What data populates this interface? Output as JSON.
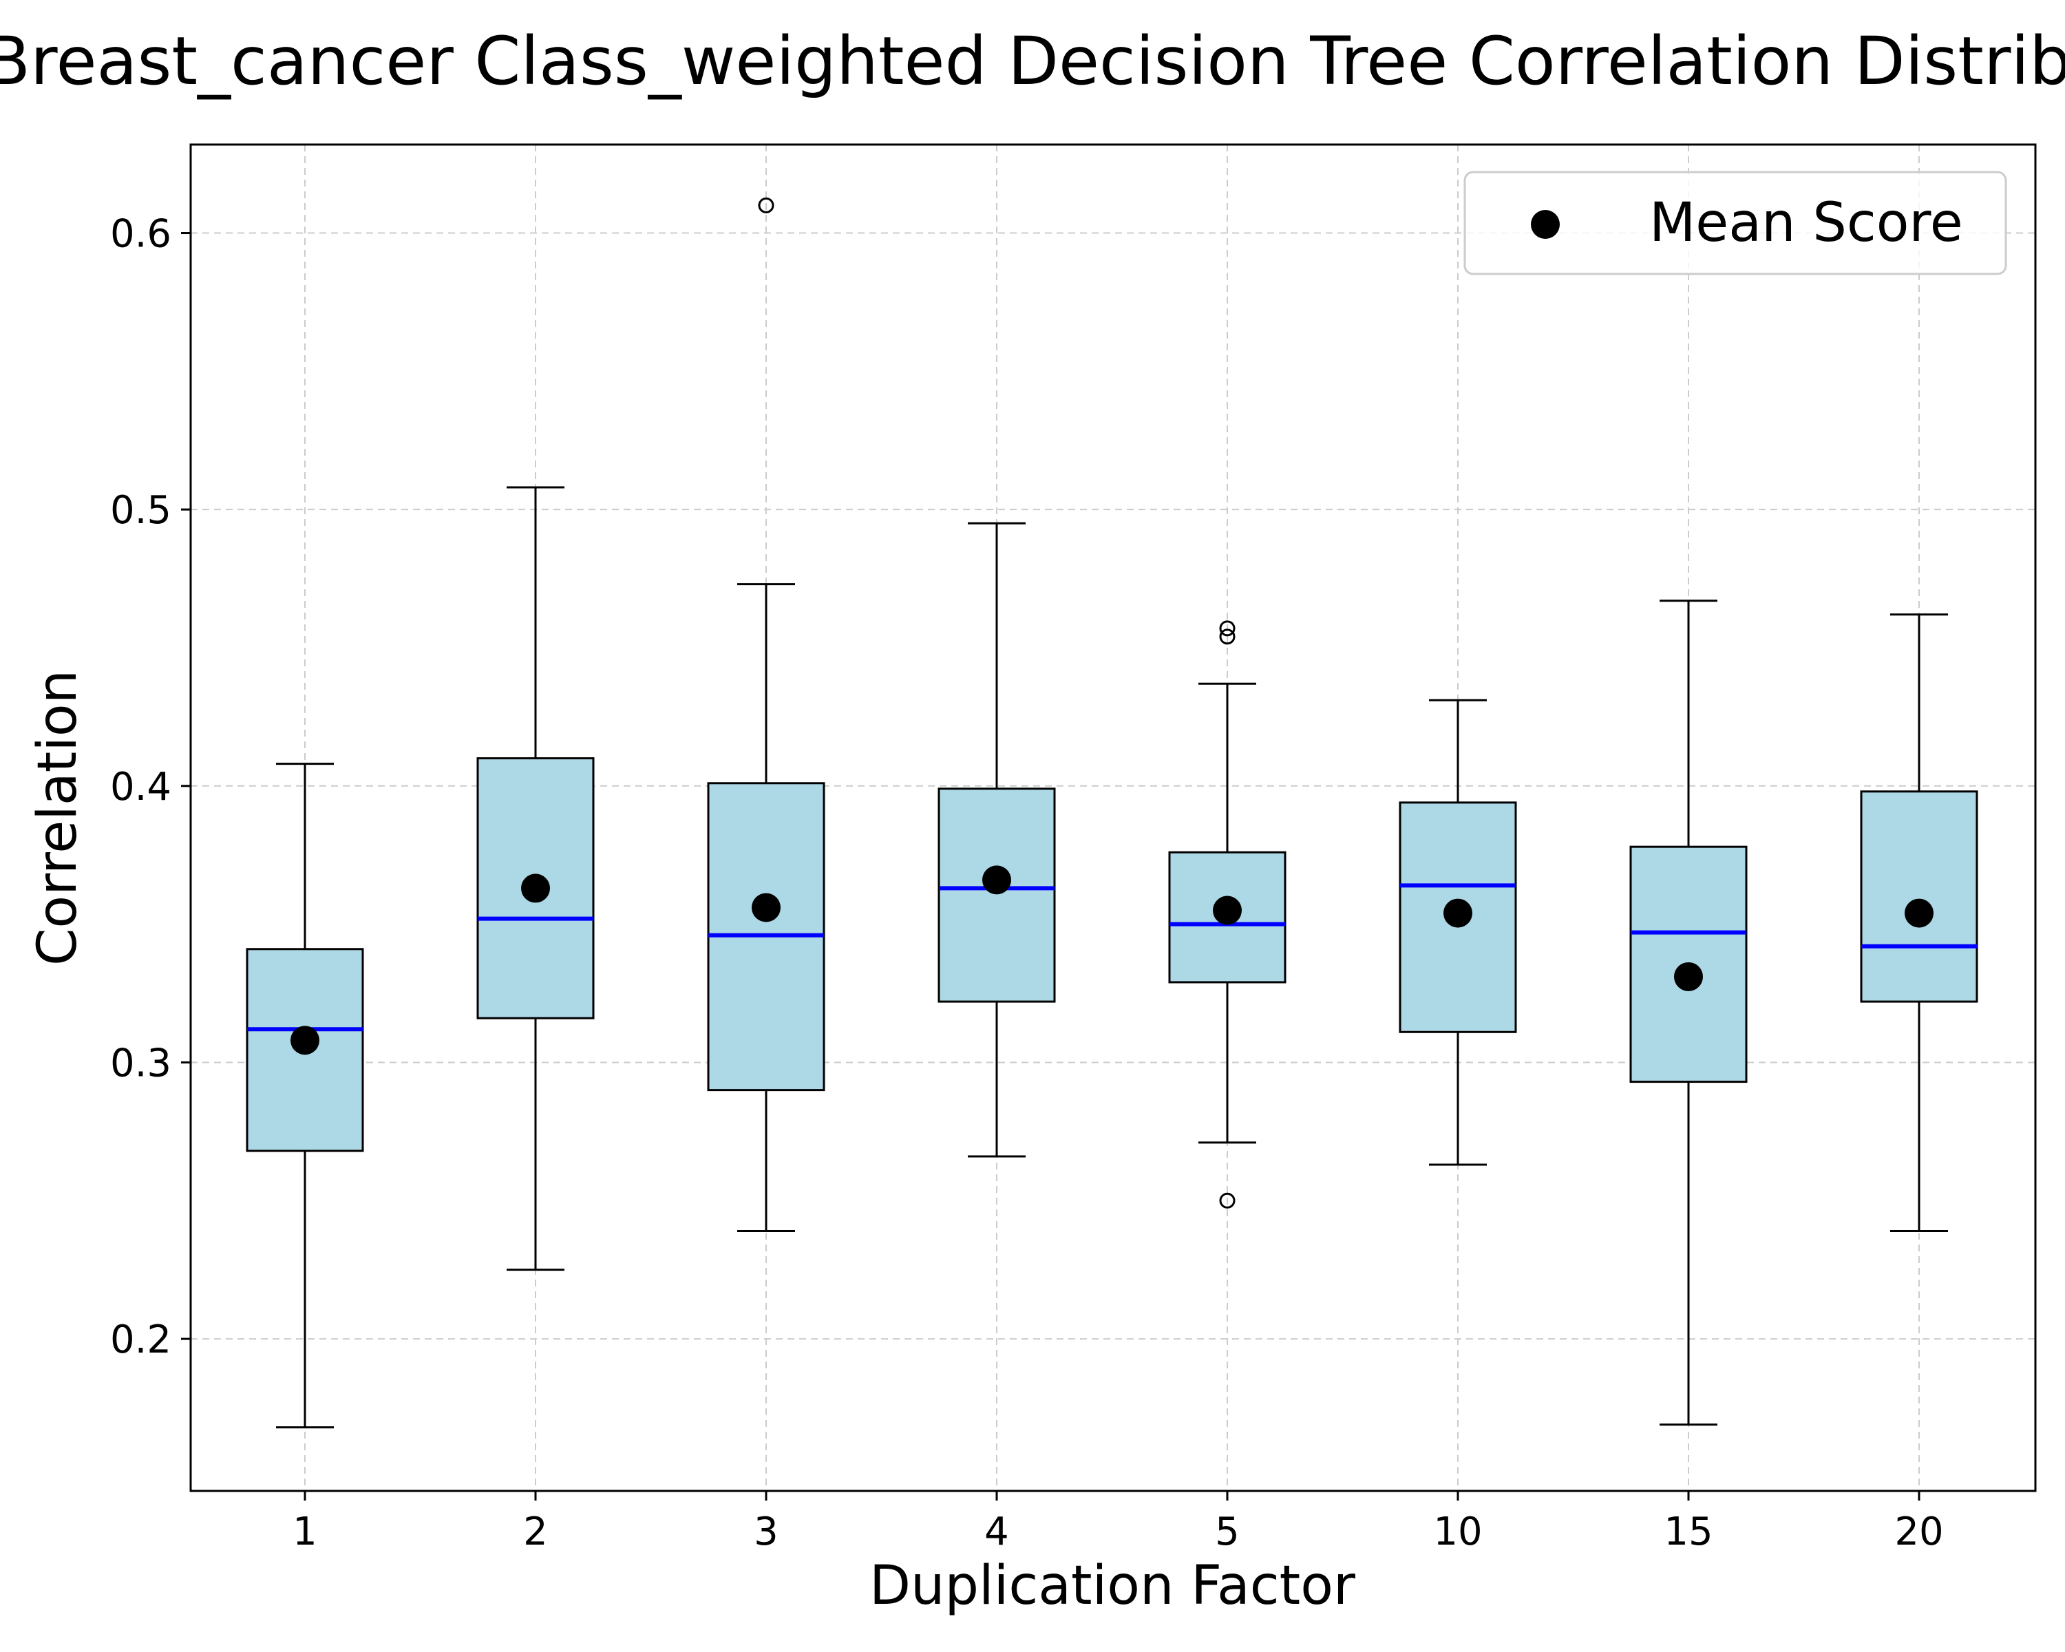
{
  "chart_data": {
    "type": "box",
    "title": "Breast_cancer Class_weighted Decision Tree Correlation Distribution",
    "xlabel": "Duplication Factor",
    "ylabel": "Correlation",
    "categories": [
      "1",
      "2",
      "3",
      "4",
      "5",
      "10",
      "15",
      "20"
    ],
    "ylim": [
      0.145,
      0.632
    ],
    "yticks": [
      0.2,
      0.3,
      0.4,
      0.5,
      0.6
    ],
    "ytick_labels": [
      "0.2",
      "0.3",
      "0.4",
      "0.5",
      "0.6"
    ],
    "grid": true,
    "legend": {
      "position": "top-right",
      "entries": [
        "Mean Score"
      ]
    },
    "boxes": [
      {
        "category": "1",
        "whisker_low": 0.168,
        "q1": 0.268,
        "median": 0.312,
        "q3": 0.341,
        "whisker_high": 0.408,
        "mean": 0.308,
        "outliers": []
      },
      {
        "category": "2",
        "whisker_low": 0.225,
        "q1": 0.316,
        "median": 0.352,
        "q3": 0.41,
        "whisker_high": 0.508,
        "mean": 0.363,
        "outliers": []
      },
      {
        "category": "3",
        "whisker_low": 0.239,
        "q1": 0.29,
        "median": 0.346,
        "q3": 0.401,
        "whisker_high": 0.473,
        "mean": 0.356,
        "outliers": [
          0.61
        ]
      },
      {
        "category": "4",
        "whisker_low": 0.266,
        "q1": 0.322,
        "median": 0.363,
        "q3": 0.399,
        "whisker_high": 0.495,
        "mean": 0.366,
        "outliers": []
      },
      {
        "category": "5",
        "whisker_low": 0.271,
        "q1": 0.329,
        "median": 0.35,
        "q3": 0.376,
        "whisker_high": 0.437,
        "mean": 0.355,
        "outliers": [
          0.25,
          0.454,
          0.457
        ]
      },
      {
        "category": "10",
        "whisker_low": 0.263,
        "q1": 0.311,
        "median": 0.364,
        "q3": 0.394,
        "whisker_high": 0.431,
        "mean": 0.354,
        "outliers": []
      },
      {
        "category": "15",
        "whisker_low": 0.169,
        "q1": 0.293,
        "median": 0.347,
        "q3": 0.378,
        "whisker_high": 0.467,
        "mean": 0.331,
        "outliers": []
      },
      {
        "category": "20",
        "whisker_low": 0.239,
        "q1": 0.322,
        "median": 0.342,
        "q3": 0.398,
        "whisker_high": 0.462,
        "mean": 0.354,
        "outliers": []
      }
    ],
    "colors": {
      "box_fill": "#add8e6",
      "box_edge": "#000000",
      "median": "#0000ff",
      "mean_marker": "#000000",
      "grid": "#cccccc"
    }
  }
}
